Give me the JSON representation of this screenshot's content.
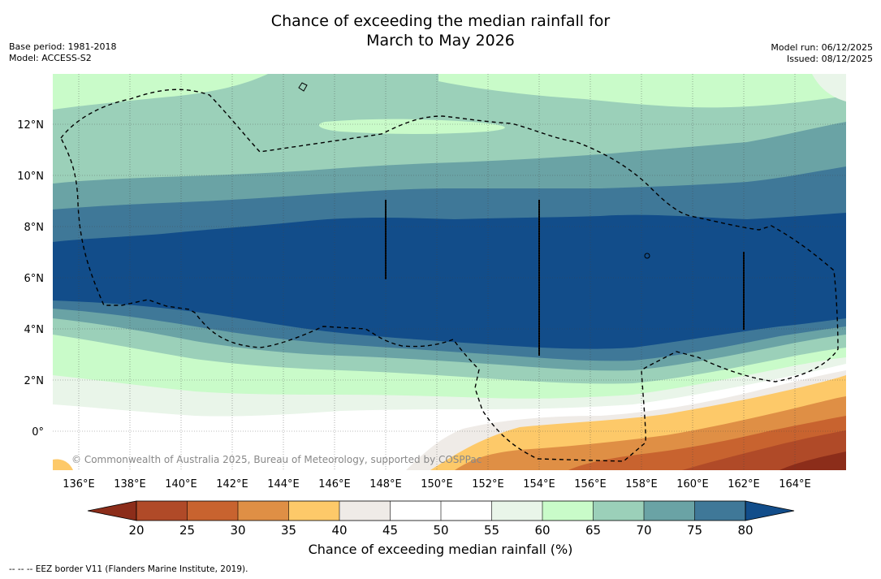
{
  "title": {
    "line1": "Chance of exceeding the median rainfall for",
    "line2": "March to May 2026"
  },
  "meta_left": {
    "base_period": "Base period: 1981-2018",
    "model": "Model: ACCESS-S2"
  },
  "meta_right": {
    "model_run": "Model run: 06/12/2025",
    "issued": "Issued: 08/12/2025"
  },
  "map": {
    "attribution": "© Commonwealth of Australia 2025, Bureau of Meteorology, supported by COSPPac",
    "lon_labels": [
      "136°E",
      "138°E",
      "140°E",
      "142°E",
      "144°E",
      "146°E",
      "148°E",
      "150°E",
      "152°E",
      "154°E",
      "156°E",
      "158°E",
      "160°E",
      "162°E",
      "164°E"
    ],
    "lat_labels": [
      "12°N",
      "10°N",
      "8°N",
      "6°N",
      "4°N",
      "2°N",
      "0°"
    ],
    "extent": {
      "lon_min": 134.9,
      "lon_max": 165.9,
      "lat_min": -1.5,
      "lat_max": 14.0
    }
  },
  "colorbar": {
    "title": "Chance of exceeding median rainfall (%)",
    "ticks": [
      "20",
      "25",
      "30",
      "35",
      "40",
      "45",
      "50",
      "55",
      "60",
      "65",
      "70",
      "75",
      "80"
    ],
    "colors": {
      "below_20": "#8c2d1a",
      "20_25": "#b04a28",
      "25_30": "#c8632f",
      "30_35": "#df8f45",
      "35_40": "#fdc969",
      "40_45": "#efebe7",
      "45_50": "#ffffff",
      "50_55": "#ffffff",
      "55_60": "#e9f5e9",
      "60_65": "#c9fbc9",
      "65_70": "#9bd0b9",
      "70_75": "#6aa3a5",
      "75_80": "#3f7898",
      "above_80": "#124d8a"
    }
  },
  "footer": {
    "legend": "--  --  -- EEZ border V11 (Flanders Marine Institute, 2019)."
  }
}
